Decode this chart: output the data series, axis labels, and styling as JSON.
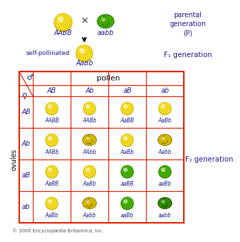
{
  "parental_label": "parental\ngeneration\n(P)",
  "f1_label": "F₁ generation",
  "f2_label": "F₂ generation",
  "self_pollinated": "self-pollinated",
  "p1_genotype": "AABB",
  "p2_genotype": "aabb",
  "f1_genotype": "AaBb",
  "pollen_label": "pollen",
  "ovules_label": "ovules",
  "pollen_types": [
    "AB",
    "Ab",
    "aB",
    "ab"
  ],
  "ovule_types": [
    "AB",
    "Ab",
    "aB",
    "ab"
  ],
  "grid_genotypes": [
    [
      "AABB",
      "AABb",
      "AaBB",
      "AaBb"
    ],
    [
      "AABb",
      "AAbb",
      "AaBb",
      "Aabb"
    ],
    [
      "AaBB",
      "AaBb",
      "aaBB",
      "aaBb"
    ],
    [
      "AaBb",
      "Aabb",
      "aaBb",
      "aabb"
    ]
  ],
  "grid_phenotypes": [
    [
      "round_yellow",
      "round_yellow",
      "round_yellow",
      "round_yellow"
    ],
    [
      "round_yellow",
      "wrinkled_yellow",
      "round_yellow",
      "wrinkled_yellow"
    ],
    [
      "round_yellow",
      "round_yellow",
      "round_green",
      "round_green"
    ],
    [
      "round_yellow",
      "wrinkled_yellow",
      "round_green",
      "wrinkled_green"
    ]
  ],
  "bg_color": "#ffffff",
  "grid_border_color": "#dd2200",
  "text_color": "#1a1a8c",
  "yellow_color": "#f0d820",
  "yellow_dark": "#c8a800",
  "yellow_wrinkled_color": "#d4b800",
  "yellow_wrinkled_dark": "#8a7000",
  "green_color": "#44aa00",
  "green_dark": "#227700",
  "green_wrinkled_color": "#338800",
  "green_wrinkled_dark": "#115500",
  "copyright": "© 2006 Encyclopædia Britannica, Inc."
}
